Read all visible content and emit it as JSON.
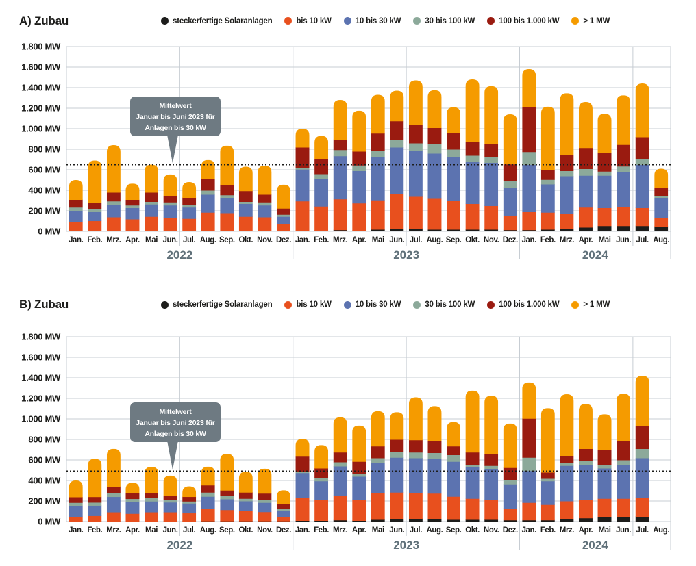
{
  "page": {
    "background": "#ffffff",
    "unit": "MW"
  },
  "chart_data": [
    {
      "id": "chart-a",
      "type": "bar",
      "stacked": true,
      "title": "A) Zubau",
      "ylabel": "MW",
      "ylim": [
        0,
        1800
      ],
      "ytick_step": 200,
      "ytick_labels": [
        "0 MW",
        "200 MW",
        "400 MW",
        "600 MW",
        "800 MW",
        "1.000 MW",
        "1.200 MW",
        "1.400 MW",
        "1.600 MW",
        "1.800 MW"
      ],
      "grid": true,
      "legend_position": "top",
      "year_groups": [
        {
          "year": "2022",
          "months": [
            "Jan.",
            "Feb.",
            "Mrz.",
            "Apr.",
            "Mai",
            "Jun.",
            "Jul.",
            "Aug.",
            "Sep.",
            "Okt.",
            "Nov.",
            "Dez."
          ]
        },
        {
          "year": "2023",
          "months": [
            "Jan.",
            "Feb.",
            "Mrz.",
            "Apr.",
            "Mai",
            "Jun.",
            "Jul.",
            "Aug.",
            "Sep.",
            "Okt.",
            "Nov.",
            "Dez."
          ]
        },
        {
          "year": "2024",
          "months": [
            "Jan.",
            "Feb.",
            "Mrz.",
            "Apr.",
            "Mai",
            "Jun.",
            "Jul.",
            "Aug."
          ]
        }
      ],
      "series": [
        {
          "name": "steckerfertige Solaranlagen",
          "color": "#1d1d1b",
          "values": [
            2,
            2,
            3,
            3,
            3,
            3,
            3,
            5,
            5,
            5,
            5,
            5,
            10,
            10,
            15,
            10,
            20,
            25,
            30,
            20,
            20,
            20,
            20,
            15,
            15,
            20,
            25,
            40,
            55,
            55,
            55,
            50
          ]
        },
        {
          "name": "bis 10 kW",
          "color": "#e8501e",
          "values": [
            92,
            101,
            137,
            117,
            142,
            132,
            122,
            180,
            175,
            140,
            135,
            65,
            285,
            235,
            300,
            265,
            285,
            340,
            310,
            300,
            280,
            250,
            230,
            135,
            175,
            165,
            150,
            195,
            175,
            185,
            175,
            80
          ]
        },
        {
          "name": "10 bis 30 kW",
          "color": "#5c73b0",
          "values": [
            106,
            87,
            120,
            110,
            120,
            120,
            110,
            175,
            150,
            125,
            115,
            75,
            310,
            270,
            420,
            315,
            420,
            455,
            450,
            440,
            430,
            410,
            420,
            280,
            460,
            275,
            365,
            310,
            315,
            340,
            420,
            195
          ]
        },
        {
          "name": "30 bis 100 kW",
          "color": "#8ca99a",
          "values": [
            35,
            30,
            35,
            25,
            25,
            30,
            25,
            40,
            25,
            20,
            30,
            20,
            15,
            45,
            60,
            55,
            60,
            70,
            70,
            90,
            70,
            60,
            55,
            65,
            125,
            45,
            50,
            65,
            40,
            55,
            55,
            25
          ]
        },
        {
          "name": "100 bis 1.000 kW",
          "color": "#9a1b10",
          "values": [
            75,
            60,
            85,
            55,
            90,
            60,
            70,
            110,
            100,
            105,
            75,
            60,
            200,
            145,
            100,
            135,
            170,
            185,
            180,
            160,
            160,
            130,
            125,
            160,
            435,
            95,
            155,
            205,
            185,
            210,
            215,
            75
          ]
        },
        {
          "name": "> 1 MW",
          "color": "#f59b00",
          "values": [
            190,
            410,
            460,
            155,
            270,
            210,
            150,
            185,
            380,
            235,
            280,
            230,
            180,
            225,
            385,
            395,
            375,
            295,
            430,
            365,
            250,
            610,
            565,
            485,
            370,
            615,
            600,
            445,
            375,
            480,
            520,
            185
          ]
        }
      ],
      "reference_line": {
        "value": 650,
        "style": "dotted",
        "color": "#1d1d1b"
      },
      "annotation": {
        "lines": [
          "Mittelwert",
          "Januar bis Juni 2023 für",
          "Anlagen bis 30 kW"
        ],
        "box_color": "#6e7a82"
      }
    },
    {
      "id": "chart-b",
      "type": "bar",
      "stacked": true,
      "title": "B) Zubau",
      "ylabel": "MW",
      "ylim": [
        0,
        1800
      ],
      "ytick_step": 200,
      "ytick_labels": [
        "0 MW",
        "200 MW",
        "400 MW",
        "600 MW",
        "800 MW",
        "1.000 MW",
        "1.200 MW",
        "1.400 MW",
        "1.600 MW",
        "1.800 MW"
      ],
      "grid": true,
      "legend_position": "top",
      "year_groups": [
        {
          "year": "2022",
          "months": [
            "Jan.",
            "Feb.",
            "Mrz.",
            "Apr.",
            "Mai",
            "Jun.",
            "Jul.",
            "Aug.",
            "Sep.",
            "Okt.",
            "Nov.",
            "Dez."
          ]
        },
        {
          "year": "2023",
          "months": [
            "Jan.",
            "Feb.",
            "Mrz.",
            "Apr.",
            "Mai",
            "Jun.",
            "Jul.",
            "Aug.",
            "Sep.",
            "Okt.",
            "Nov.",
            "Dez."
          ]
        },
        {
          "year": "2024",
          "months": [
            "Jan.",
            "Feb.",
            "Mrz.",
            "Apr.",
            "Mai",
            "Jun.",
            "Jul.",
            "Aug."
          ]
        }
      ],
      "series": [
        {
          "name": "steckerfertige Solaranlagen",
          "color": "#1d1d1b",
          "values": [
            2,
            2,
            3,
            3,
            3,
            3,
            3,
            5,
            5,
            5,
            5,
            5,
            10,
            10,
            15,
            10,
            20,
            25,
            30,
            25,
            20,
            20,
            20,
            15,
            15,
            15,
            25,
            35,
            45,
            50,
            50,
            null
          ]
        },
        {
          "name": "bis 10 kW",
          "color": "#e8501e",
          "values": [
            48,
            55,
            90,
            75,
            90,
            90,
            80,
            120,
            110,
            100,
            90,
            40,
            225,
            200,
            240,
            205,
            260,
            260,
            250,
            250,
            225,
            205,
            195,
            115,
            170,
            150,
            175,
            180,
            180,
            175,
            185,
            null
          ]
        },
        {
          "name": "10 bis 30 kW",
          "color": "#5c73b0",
          "values": [
            105,
            100,
            150,
            115,
            105,
            95,
            95,
            120,
            105,
            95,
            90,
            60,
            240,
            185,
            285,
            225,
            290,
            340,
            340,
            335,
            340,
            305,
            295,
            235,
            310,
            230,
            345,
            335,
            295,
            325,
            385,
            null
          ]
        },
        {
          "name": "30 bis 100 kW",
          "color": "#8ca99a",
          "values": [
            30,
            30,
            35,
            30,
            35,
            25,
            20,
            40,
            30,
            25,
            30,
            20,
            10,
            35,
            40,
            25,
            50,
            55,
            55,
            60,
            65,
            25,
            35,
            40,
            130,
            25,
            30,
            40,
            35,
            50,
            90,
            null
          ]
        },
        {
          "name": "100 bis 1.000 kW",
          "color": "#9a1b10",
          "values": [
            55,
            55,
            65,
            55,
            45,
            40,
            45,
            70,
            55,
            60,
            60,
            45,
            150,
            90,
            95,
            120,
            115,
            120,
            120,
            115,
            85,
            120,
            115,
            120,
            380,
            60,
            65,
            120,
            145,
            185,
            220,
            null
          ]
        },
        {
          "name": "> 1 MW",
          "color": "#f59b00",
          "values": [
            160,
            370,
            365,
            100,
            255,
            195,
            100,
            180,
            355,
            200,
            240,
            135,
            170,
            225,
            340,
            350,
            340,
            265,
            415,
            340,
            235,
            600,
            565,
            430,
            350,
            625,
            600,
            435,
            345,
            460,
            490,
            null
          ]
        }
      ],
      "reference_line": {
        "value": 490,
        "style": "dotted",
        "color": "#1d1d1b"
      },
      "annotation": {
        "lines": [
          "Mittelwert",
          "Januar bis Juni 2023 für",
          "Anlagen bis 30 kW"
        ],
        "box_color": "#6e7a82"
      }
    }
  ]
}
